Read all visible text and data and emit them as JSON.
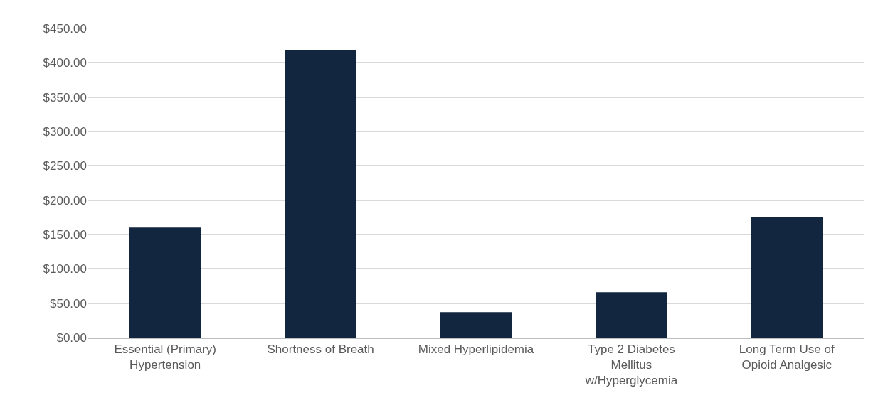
{
  "chart_data": {
    "type": "bar",
    "categories": [
      "Essential (Primary) Hypertension",
      "Shortness of Breath",
      "Mixed Hyperlipidemia",
      "Type 2 Diabetes Mellitus w/Hyperglycemia",
      "Long Term Use of Opioid Analgesic"
    ],
    "values": [
      160,
      418,
      37,
      66,
      175
    ],
    "color": "#13263f",
    "ylim": [
      0,
      450
    ],
    "yticks": [
      {
        "value": 0,
        "label": "$0.00"
      },
      {
        "value": 50,
        "label": "$50.00"
      },
      {
        "value": 100,
        "label": "$100.00"
      },
      {
        "value": 150,
        "label": "$150.00"
      },
      {
        "value": 200,
        "label": "$200.00"
      },
      {
        "value": 250,
        "label": "$250.00"
      },
      {
        "value": 300,
        "label": "$300.00"
      },
      {
        "value": 350,
        "label": "$350.00"
      },
      {
        "value": 400,
        "label": "$400.00"
      },
      {
        "value": 450,
        "label": "$450.00"
      }
    ],
    "grid": "y"
  }
}
